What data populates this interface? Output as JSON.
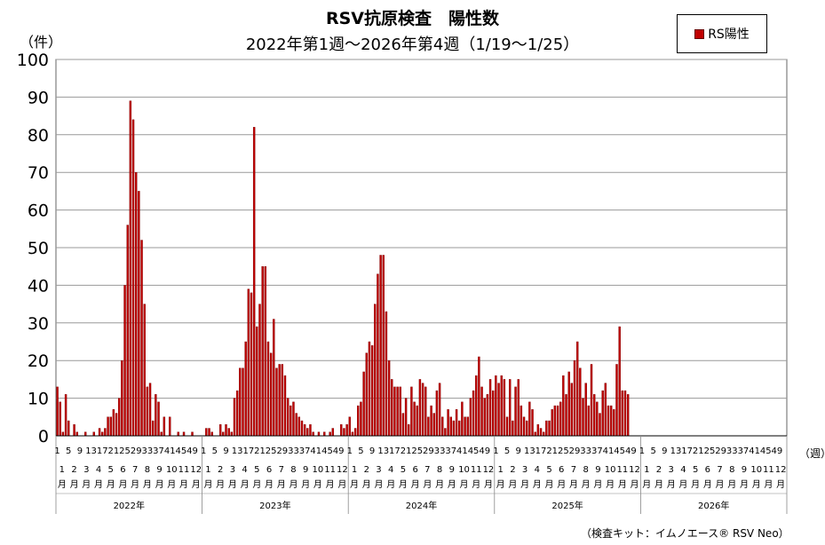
{
  "chart_data": {
    "type": "bar",
    "title": "RSV抗原検査　陽性数",
    "subtitle": "2022年第1週～2026年第4週（1/19～1/25）",
    "ylabel": "（件）",
    "xlabel": "（週）",
    "ylim": [
      0,
      100
    ],
    "yticks": [
      0,
      10,
      20,
      30,
      40,
      50,
      60,
      70,
      80,
      90,
      100
    ],
    "grid": true,
    "legend": "top-right",
    "colors": {
      "bar": "#c00000",
      "bar_edge": "#7a0000",
      "grid": "#999999"
    },
    "series": [
      {
        "name": "RS陽性",
        "values": [
          13,
          9,
          1,
          11,
          4,
          0,
          3,
          1,
          0,
          0,
          1,
          0,
          0,
          1,
          0,
          2,
          1,
          2,
          5,
          5,
          7,
          6,
          10,
          20,
          40,
          56,
          89,
          84,
          70,
          65,
          52,
          35,
          13,
          14,
          4,
          11,
          9,
          1,
          5,
          0,
          5,
          0,
          0,
          1,
          0,
          1,
          0,
          0,
          1,
          0,
          0,
          0,
          0,
          2,
          2,
          1,
          0,
          0,
          3,
          1,
          3,
          2,
          1,
          10,
          12,
          18,
          18,
          25,
          39,
          38,
          82,
          29,
          35,
          45,
          45,
          25,
          22,
          31,
          18,
          19,
          19,
          16,
          10,
          8,
          9,
          6,
          5,
          4,
          3,
          2,
          3,
          1,
          0,
          1,
          0,
          1,
          0,
          1,
          2,
          0,
          0,
          3,
          2,
          3,
          5,
          1,
          2,
          8,
          9,
          17,
          22,
          25,
          24,
          35,
          43,
          48,
          48,
          33,
          20,
          15,
          13,
          13,
          13,
          6,
          10,
          3,
          13,
          9,
          8,
          15,
          14,
          13,
          5,
          8,
          6,
          12,
          14,
          5,
          2,
          7,
          5,
          4,
          7,
          4,
          9,
          5,
          5,
          10,
          12,
          16,
          21,
          13,
          10,
          11,
          15,
          12,
          16,
          14,
          16,
          15,
          5,
          15,
          4,
          13,
          15,
          8,
          5,
          4,
          9,
          7,
          1,
          3,
          2,
          1,
          4,
          4,
          7,
          8,
          8,
          9,
          16,
          11,
          17,
          14,
          20,
          25,
          18,
          10,
          14,
          8,
          19,
          11,
          9,
          6,
          12,
          14,
          8,
          8,
          7,
          19,
          29,
          12,
          12,
          11
        ]
      }
    ],
    "x_week_labels": [
      "1",
      "5",
      "9",
      "13",
      "17",
      "21",
      "25",
      "29",
      "33",
      "37",
      "41",
      "45",
      "49"
    ],
    "x_month_labels": [
      "1",
      "2",
      "3",
      "4",
      "5",
      "6",
      "7",
      "8",
      "9",
      "10",
      "11",
      "12"
    ],
    "month_suffix": "月",
    "years": [
      "2022年",
      "2023年",
      "2024年",
      "2025年",
      "2026年"
    ]
  },
  "footnote": "（検査キット：イムノエース® RSV Neo）"
}
